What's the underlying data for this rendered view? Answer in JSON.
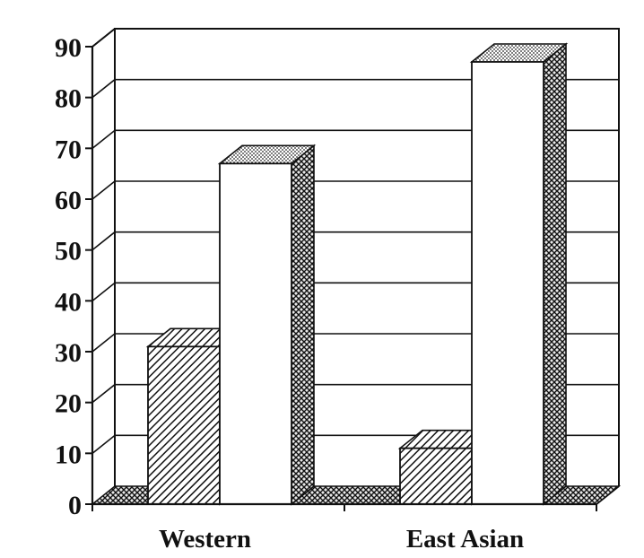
{
  "chart_data": {
    "type": "bar",
    "title": "",
    "xlabel": "",
    "ylabel": "",
    "categories": [
      "Western",
      "East Asian"
    ],
    "series": [
      {
        "values": [
          31,
          11
        ],
        "pattern": "diagonal-hatch"
      },
      {
        "values": [
          67,
          87
        ],
        "pattern": "white"
      }
    ],
    "ylim": [
      0,
      90
    ],
    "yticks": [
      0,
      10,
      20,
      30,
      40,
      50,
      60,
      70,
      80,
      90
    ],
    "grid": true,
    "three_d": true,
    "colors": {
      "ink": "#111111",
      "background": "#ffffff"
    }
  }
}
